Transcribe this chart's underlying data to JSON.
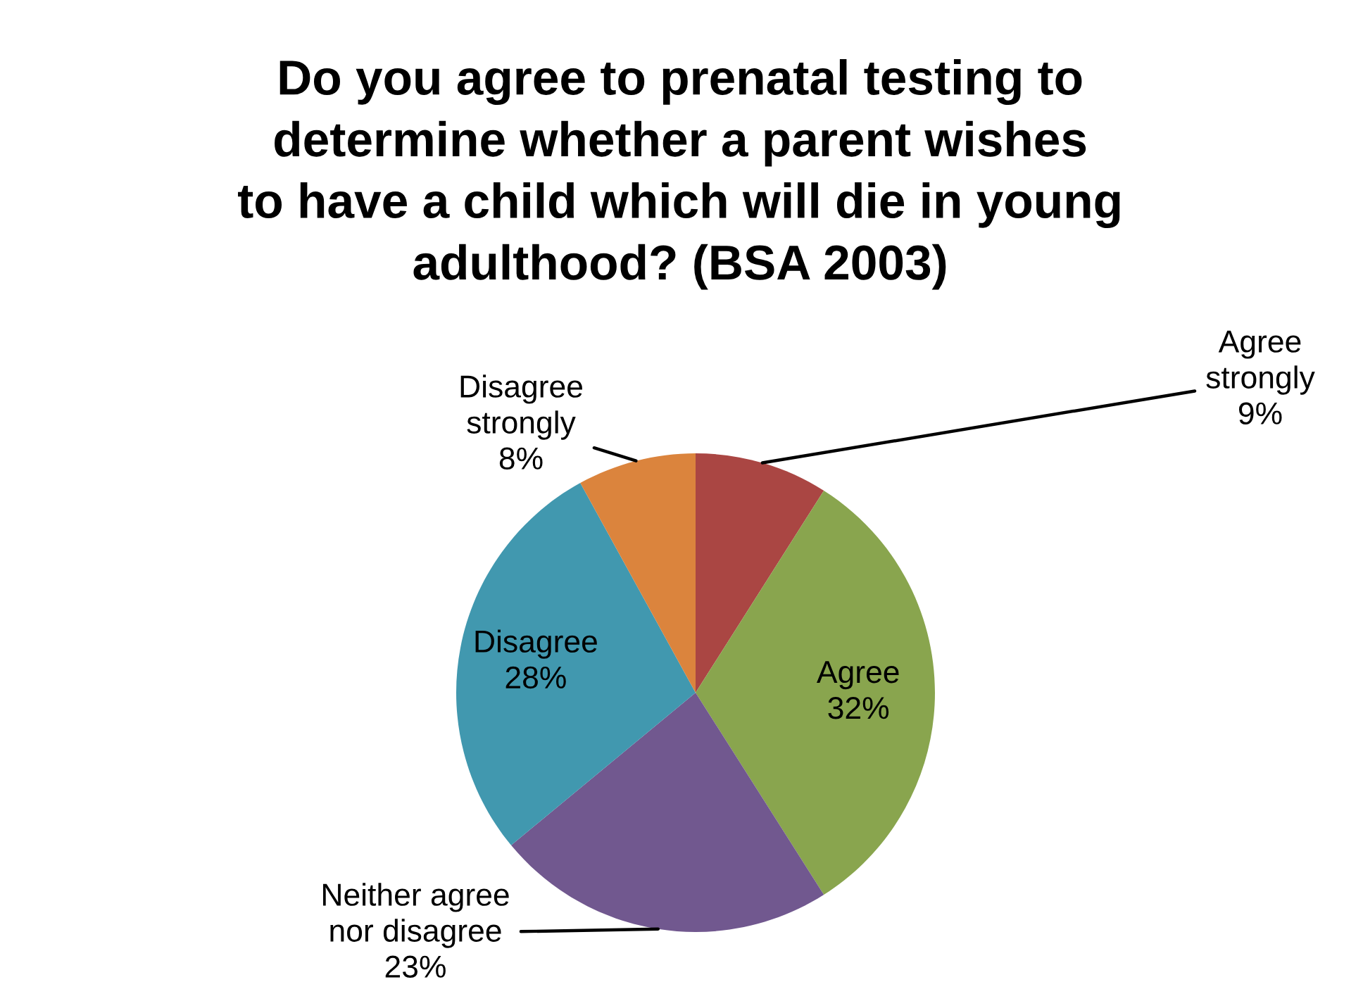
{
  "chart_data": {
    "type": "pie",
    "title": "Do you agree to prenatal testing to\ndetermine whether a parent wishes\nto have a child which will die in young\nadulthood? (BSA 2003)",
    "categories": [
      "Agree strongly",
      "Agree",
      "Neither agree nor disagree",
      "Disagree",
      "Disagree strongly"
    ],
    "values": [
      9,
      32,
      23,
      28,
      8
    ],
    "colors": [
      "#aa4643",
      "#89a54e",
      "#71588f",
      "#4198af",
      "#db843d"
    ],
    "value_labels": [
      "9%",
      "32%",
      "23%",
      "28%",
      "8%"
    ]
  }
}
